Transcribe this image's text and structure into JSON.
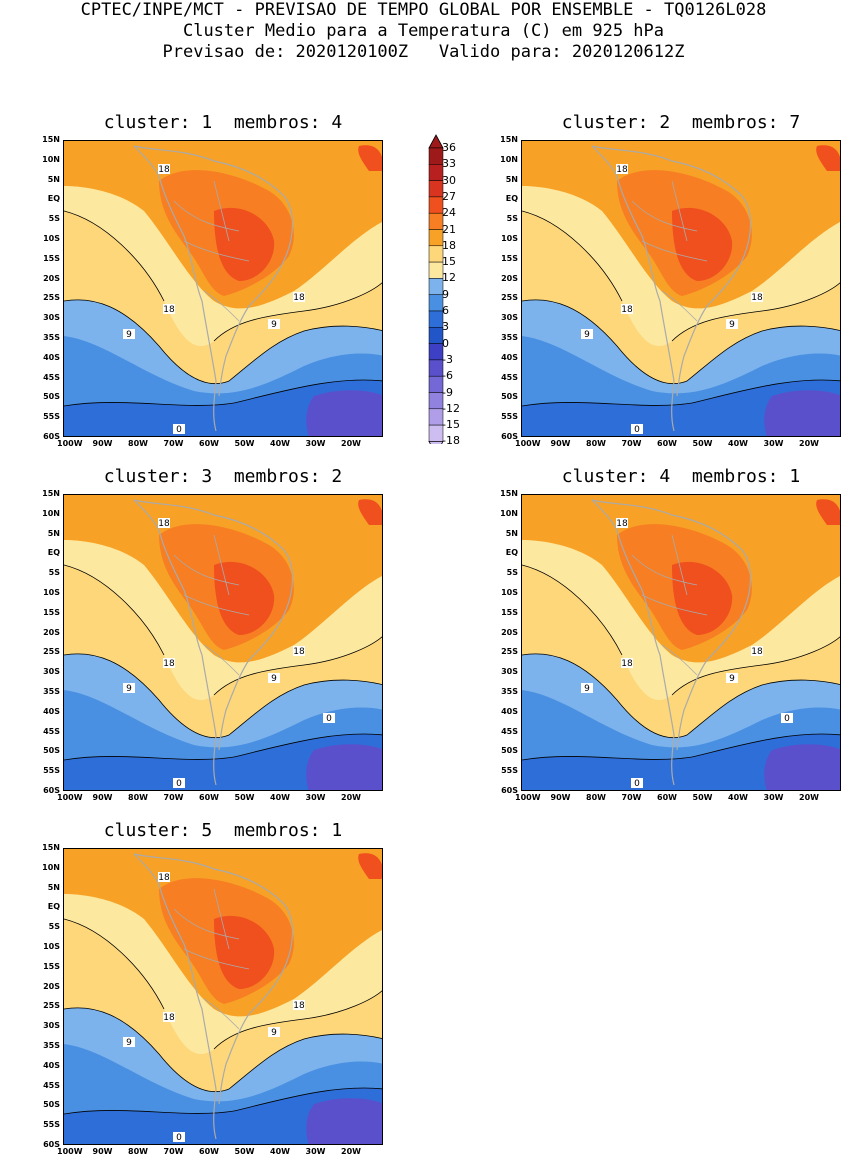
{
  "header": {
    "line1": "CPTEC/INPE/MCT - PREVISAO DE TEMPO GLOBAL POR ENSEMBLE - TQ0126L028",
    "line2": "Cluster Medio para a Temperatura (C) em 925 hPa",
    "line3": "Previsao de: 2020120100Z   Valido para: 2020120612Z"
  },
  "panels": [
    {
      "title": "cluster: 1  membros: 4",
      "contours": [
        "18",
        "18",
        "18",
        "9",
        "9",
        "0"
      ]
    },
    {
      "title": "cluster: 2  membros: 7",
      "contours": [
        "18",
        "18",
        "18",
        "9",
        "9",
        "0"
      ]
    },
    {
      "title": "cluster: 3  membros: 2",
      "contours": [
        "18",
        "18",
        "18",
        "9",
        "9",
        "0",
        "0"
      ]
    },
    {
      "title": "cluster: 4  membros: 1",
      "contours": [
        "18",
        "18",
        "18",
        "9",
        "9",
        "0",
        "0"
      ]
    },
    {
      "title": "cluster: 5  membros: 1",
      "contours": [
        "18",
        "18",
        "18",
        "9",
        "9",
        "0"
      ]
    }
  ],
  "lat_ticks": [
    "15N",
    "10N",
    "5N",
    "EQ",
    "5S",
    "10S",
    "15S",
    "20S",
    "25S",
    "30S",
    "35S",
    "40S",
    "45S",
    "50S",
    "55S",
    "60S"
  ],
  "lon_ticks": [
    "100W",
    "90W",
    "80W",
    "70W",
    "60W",
    "50W",
    "40W",
    "30W",
    "20W"
  ],
  "colorbar": {
    "labels": [
      "36",
      "33",
      "30",
      "27",
      "24",
      "21",
      "18",
      "15",
      "12",
      "9",
      "6",
      "3",
      "0",
      "-3",
      "-6",
      "-9",
      "-12",
      "-15",
      "-18"
    ],
    "colors": [
      "#9e1a1a",
      "#b82020",
      "#d8341f",
      "#f0501e",
      "#f77e22",
      "#f7a226",
      "#fdd77a",
      "#fde8a0",
      "#7cb3ec",
      "#4a90e2",
      "#2e6ed8",
      "#2255c8",
      "#3d3fc4",
      "#5a50cc",
      "#7468d6",
      "#9282df",
      "#b09ee8",
      "#cdbdf0"
    ],
    "stops": [
      "#9e1a1a",
      "#b82020",
      "#d8341f",
      "#f0501e",
      "#f77e22",
      "#f7a226",
      "#fdd77a",
      "#fde8a0",
      "#7cb3ec",
      "#4a90e2",
      "#2e6ed8",
      "#2255c8",
      "#3d3fc4",
      "#5a50cc",
      "#7468d6",
      "#9282df",
      "#b09ee8",
      "#cdbdf0"
    ]
  }
}
